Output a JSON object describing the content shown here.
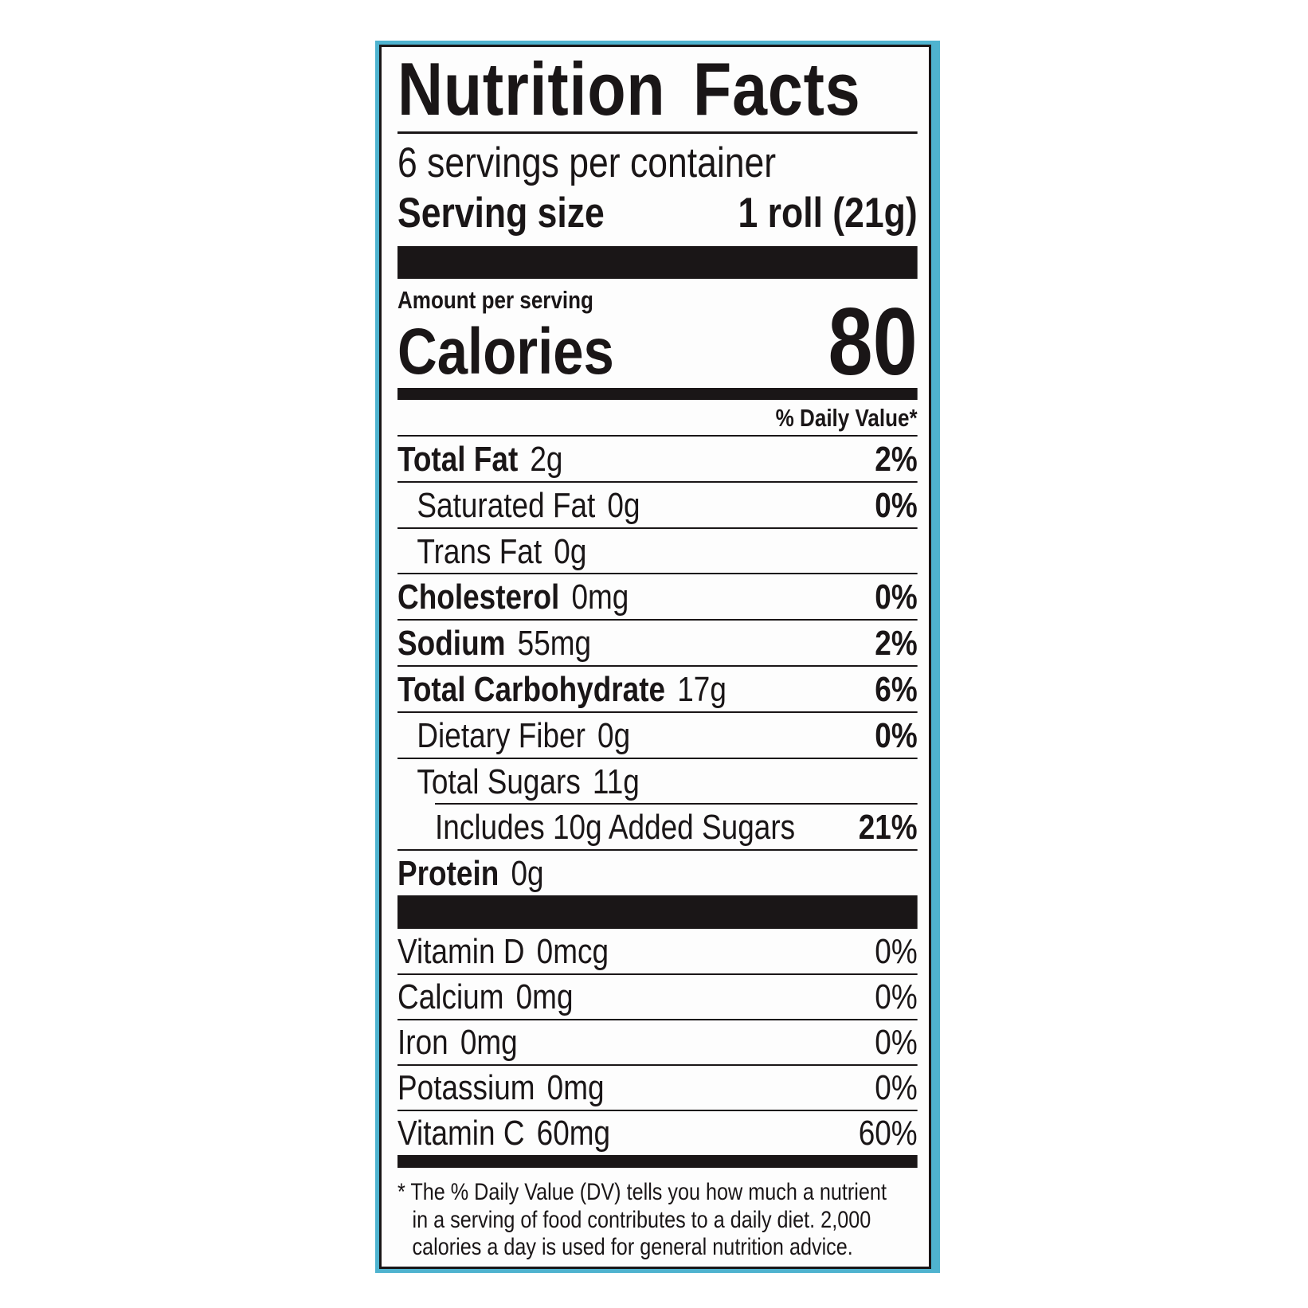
{
  "label": {
    "title": "Nutrition Facts",
    "servings_per_container": "6 servings per container",
    "serving_size_label": "Serving size",
    "serving_size_value": "1 roll (21g)",
    "amount_per_serving": "Amount per serving",
    "calories_label": "Calories",
    "calories_value": "80",
    "dv_header": "% Daily Value*",
    "nutrients": [
      {
        "name": "Total Fat",
        "amount": "2g",
        "dv": "2%",
        "bold": true,
        "indent": 0
      },
      {
        "name": "Saturated Fat",
        "amount": "0g",
        "dv": "0%",
        "bold": false,
        "indent": 1
      },
      {
        "name": "Trans Fat",
        "amount": "0g",
        "dv": "",
        "bold": false,
        "indent": 1
      },
      {
        "name": "Cholesterol",
        "amount": "0mg",
        "dv": "0%",
        "bold": true,
        "indent": 0
      },
      {
        "name": "Sodium",
        "amount": "55mg",
        "dv": "2%",
        "bold": true,
        "indent": 0
      },
      {
        "name": "Total Carbohydrate",
        "amount": "17g",
        "dv": "6%",
        "bold": true,
        "indent": 0
      },
      {
        "name": "Dietary Fiber",
        "amount": "0g",
        "dv": "0%",
        "bold": false,
        "indent": 1
      },
      {
        "name": "Total Sugars",
        "amount": "11g",
        "dv": "",
        "bold": false,
        "indent": 1
      },
      {
        "name": "Includes 10g Added Sugars",
        "amount": "",
        "dv": "21%",
        "bold": false,
        "indent": 2
      },
      {
        "name": "Protein",
        "amount": "0g",
        "dv": "",
        "bold": true,
        "indent": 0
      }
    ],
    "vitamins": [
      {
        "name": "Vitamin D",
        "amount": "0mcg",
        "dv": "0%"
      },
      {
        "name": "Calcium",
        "amount": "0mg",
        "dv": "0%"
      },
      {
        "name": "Iron",
        "amount": "0mg",
        "dv": "0%"
      },
      {
        "name": "Potassium",
        "amount": "0mg",
        "dv": "0%"
      },
      {
        "name": "Vitamin C",
        "amount": "60mg",
        "dv": "60%"
      }
    ],
    "footnote": [
      "* The % Daily Value (DV) tells you how much a nutrient",
      "in a serving of food contributes to a daily diet. 2,000",
      "calories a day is used for general nutrition advice."
    ],
    "colors": {
      "border_accent": "#4fb3cf",
      "ink": "#1a1617"
    }
  }
}
